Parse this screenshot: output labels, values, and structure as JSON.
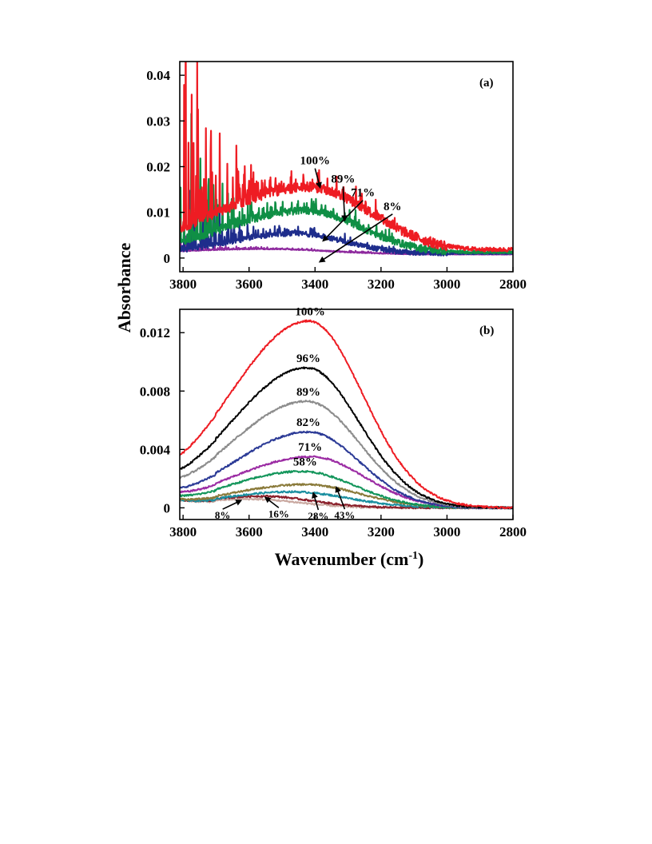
{
  "figure": {
    "ylabel": "Absorbance",
    "xlabel_main": "Wavenumber (cm",
    "xlabel_sup": "-1",
    "xlabel_tail": ")"
  },
  "chart_data": [
    {
      "type": "line",
      "panel_label": "(a)",
      "xlim": [
        3810,
        2800
      ],
      "ylim": [
        -0.003,
        0.043
      ],
      "x_ticks": [
        3800,
        3600,
        3400,
        3200,
        3000,
        2800
      ],
      "x_tick_labels": [
        "3800",
        "3600",
        "3400",
        "3200",
        "3000",
        "2800"
      ],
      "y_ticks": [
        0,
        0.01,
        0.02,
        0.03,
        0.04
      ],
      "y_tick_labels": [
        "0",
        "0.01",
        "0.02",
        "0.03",
        "0.04"
      ],
      "grid": false,
      "series": [
        {
          "label": "100%",
          "color": "#ee1c23",
          "peak_x": 3420,
          "peak_y": 0.0145,
          "width": 190,
          "skew": 1.5,
          "tail_y": 0.001,
          "noise": 0.0022,
          "lines_amp": 0.06
        },
        {
          "label": "89%",
          "color": "#0f8f45",
          "peak_x": 3430,
          "peak_y": 0.0095,
          "width": 170,
          "skew": 1.4,
          "tail_y": 0.0005,
          "noise": 0.0016,
          "lines_amp": 0.035
        },
        {
          "label": "71%",
          "color": "#1e2d8c",
          "peak_x": 3460,
          "peak_y": 0.0045,
          "width": 150,
          "skew": 1.3,
          "tail_y": 0.0003,
          "noise": 0.0011,
          "lines_amp": 0.022
        },
        {
          "label": "8%",
          "color": "#8e2a9e",
          "peak_x": 3560,
          "peak_y": 0.0012,
          "width": 200,
          "skew": 1.2,
          "tail_y": 0.0,
          "noise": 0.0002,
          "lines_amp": 0.004
        }
      ],
      "annotations": [
        {
          "text": "100%",
          "x": 3400,
          "y": 0.0205,
          "arrow_to": [
            3385,
            0.0155
          ]
        },
        {
          "text": "89%",
          "x": 3315,
          "y": 0.0165,
          "arrow_to": [
            3310,
            0.0083
          ]
        },
        {
          "text": "71%",
          "x": 3255,
          "y": 0.0135,
          "arrow_to": [
            3375,
            0.0038
          ]
        },
        {
          "text": "8%",
          "x": 3165,
          "y": 0.0105,
          "arrow_to": [
            3385,
            -0.0008
          ]
        }
      ]
    },
    {
      "type": "line",
      "panel_label": "(b)",
      "xlim": [
        3810,
        2800
      ],
      "ylim": [
        -0.0008,
        0.0136
      ],
      "x_ticks": [
        3800,
        3600,
        3400,
        3200,
        3000,
        2800
      ],
      "x_tick_labels": [
        "3800",
        "3600",
        "3400",
        "3200",
        "3000",
        "2800"
      ],
      "y_ticks": [
        0,
        0.004,
        0.008,
        0.012
      ],
      "y_tick_labels": [
        "0",
        "0.004",
        "0.008",
        "0.012"
      ],
      "grid": false,
      "series": [
        {
          "label": "100%",
          "color": "#ee1c23",
          "peak_x": 3420,
          "peak_y": 0.0128,
          "width": 165,
          "skew": 1.45
        },
        {
          "label": "96%",
          "color": "#000000",
          "peak_x": 3425,
          "peak_y": 0.0096,
          "width": 160,
          "skew": 1.45
        },
        {
          "label": "89%",
          "color": "#8c8c8c",
          "peak_x": 3425,
          "peak_y": 0.0073,
          "width": 160,
          "skew": 1.45
        },
        {
          "label": "82%",
          "color": "#2b3a96",
          "peak_x": 3420,
          "peak_y": 0.0052,
          "width": 155,
          "skew": 1.45
        },
        {
          "label": "71%",
          "color": "#9b2ba3",
          "peak_x": 3410,
          "peak_y": 0.0035,
          "width": 160,
          "skew": 1.5
        },
        {
          "label": "58%",
          "color": "#12955a",
          "peak_x": 3440,
          "peak_y": 0.0025,
          "width": 160,
          "skew": 1.4
        },
        {
          "label": "43%",
          "color": "#8a7a3a",
          "peak_x": 3430,
          "peak_y": 0.0016,
          "width": 165,
          "skew": 1.4
        },
        {
          "label": "28%",
          "color": "#1a8fa0",
          "peak_x": 3470,
          "peak_y": 0.0011,
          "width": 170,
          "skew": 1.3
        },
        {
          "label": "16%",
          "color": "#8a1f2a",
          "peak_x": 3560,
          "peak_y": 0.0008,
          "width": 150,
          "skew": 1.3
        },
        {
          "label": "8%",
          "color": "#c9a8a0",
          "peak_x": 3600,
          "peak_y": 0.0006,
          "width": 150,
          "skew": 1.3
        }
      ],
      "annotations": [
        {
          "text": "100%",
          "x": 3415,
          "y": 0.0132
        },
        {
          "text": "96%",
          "x": 3420,
          "y": 0.01
        },
        {
          "text": "89%",
          "x": 3420,
          "y": 0.0077
        },
        {
          "text": "82%",
          "x": 3420,
          "y": 0.0056
        },
        {
          "text": "71%",
          "x": 3415,
          "y": 0.0039
        },
        {
          "text": "58%",
          "x": 3430,
          "y": 0.0029
        },
        {
          "text": "8%",
          "x": 3680,
          "y": -0.00075,
          "arrow_to": [
            3625,
            0.0005
          ],
          "small": true
        },
        {
          "text": "16%",
          "x": 3510,
          "y": -0.00065,
          "arrow_to": [
            3550,
            0.0007
          ],
          "small": true
        },
        {
          "text": "28%",
          "x": 3390,
          "y": -0.0008,
          "arrow_to": [
            3405,
            0.001
          ],
          "small": true
        },
        {
          "text": "43%",
          "x": 3310,
          "y": -0.00075,
          "arrow_to": [
            3335,
            0.0014
          ],
          "small": true
        }
      ]
    }
  ]
}
